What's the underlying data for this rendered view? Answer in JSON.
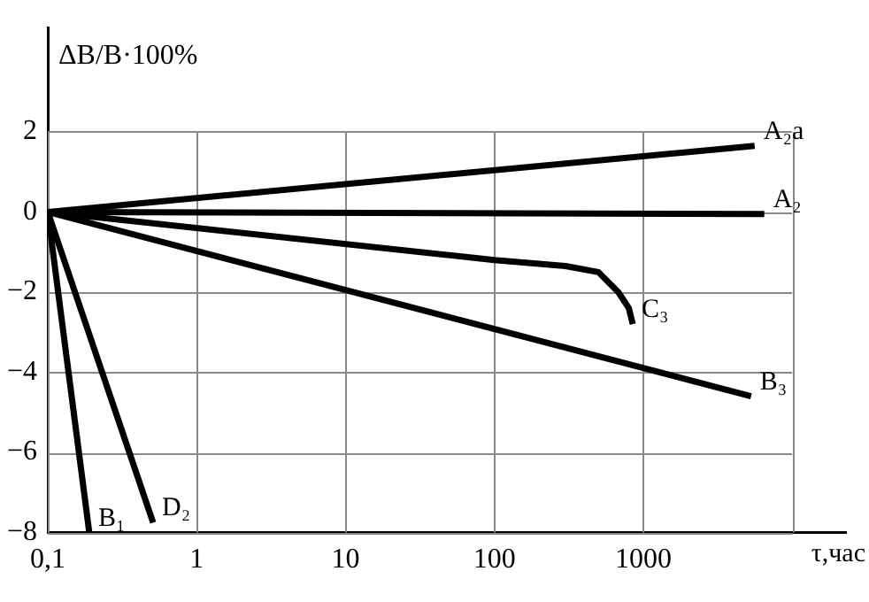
{
  "chart_data": {
    "type": "line",
    "ylabel": "ΔB/B·100%",
    "xlabel": "τ,час",
    "log": "x",
    "grid": true,
    "legend": false,
    "marker": "none",
    "line_style": "solid",
    "xlim": [
      0.1,
      23000
    ],
    "ylim": [
      -8,
      4.6
    ],
    "xticks": [
      {
        "value": 0.1,
        "label": "0,1"
      },
      1,
      10,
      100,
      1000,
      {
        "value": 10000,
        "label": null
      }
    ],
    "yticks": [
      -8,
      -6,
      -4,
      -2,
      0,
      2
    ],
    "series": [
      {
        "name": "A₂a",
        "color": "#000000",
        "x": [
          0.1,
          5600
        ],
        "values": [
          0,
          1.65
        ]
      },
      {
        "name": "A₂",
        "color": "#000000",
        "x": [
          0.1,
          6500
        ],
        "values": [
          0,
          -0.05
        ]
      },
      {
        "name": "C₃",
        "color": "#000000",
        "x": [
          0.1,
          100,
          300,
          500,
          680,
          800,
          850
        ],
        "values": [
          0,
          -1.2,
          -1.35,
          -1.5,
          -2.0,
          -2.4,
          -2.8
        ]
      },
      {
        "name": "B₃",
        "color": "#000000",
        "x": [
          0.1,
          5300
        ],
        "values": [
          0,
          -4.6
        ]
      },
      {
        "name": "B₁",
        "color": "#000000",
        "x": [
          0.1,
          0.19
        ],
        "values": [
          0,
          -8
        ]
      },
      {
        "name": "D₂",
        "color": "#000000",
        "x": [
          0.1,
          0.51
        ],
        "values": [
          0,
          -7.75
        ]
      }
    ]
  }
}
